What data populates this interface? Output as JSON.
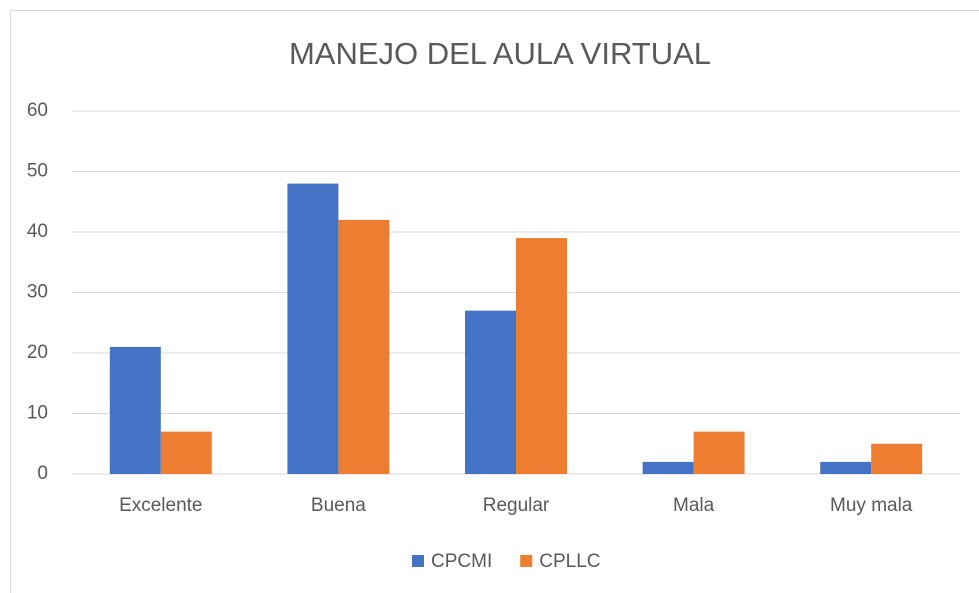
{
  "chart_data": {
    "type": "bar",
    "title": "MANEJO DEL AULA VIRTUAL",
    "categories": [
      "Excelente",
      "Buena",
      "Regular",
      "Mala",
      "Muy mala"
    ],
    "series": [
      {
        "name": "CPCMI",
        "color": "#4472c4",
        "values": [
          21,
          48,
          27,
          2,
          2
        ]
      },
      {
        "name": "CPLLC",
        "color": "#ed7d31",
        "values": [
          7,
          42,
          39,
          7,
          5
        ]
      }
    ],
    "ylim": [
      0,
      60
    ],
    "yticks": [
      0,
      10,
      20,
      30,
      40,
      50,
      60
    ],
    "grid": true,
    "legend": "bottom"
  }
}
